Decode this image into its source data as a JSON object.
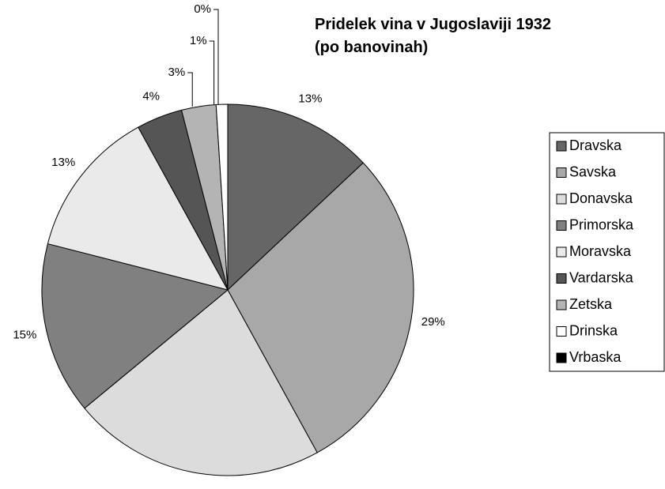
{
  "chart_data": {
    "type": "pie",
    "title": "Pridelek vina v Jugoslaviji 1932",
    "subtitle": "(po banovinah)",
    "categories": [
      "Dravska",
      "Savska",
      "Donavska",
      "Primorska",
      "Moravska",
      "Vardarska",
      "Zetska",
      "Drinska",
      "Vrbaska"
    ],
    "values": [
      13,
      29,
      22,
      15,
      13,
      4,
      3,
      1,
      0
    ],
    "value_labels": [
      "13%",
      "29%",
      "22%",
      "15%",
      "13%",
      "4%",
      "3%",
      "1%",
      "0%"
    ],
    "colors": [
      "#666666",
      "#a8a8a8",
      "#dcdcdc",
      "#808080",
      "#eaeaea",
      "#555555",
      "#b4b4b4",
      "#ffffff",
      "#000000"
    ],
    "legend": "right"
  }
}
